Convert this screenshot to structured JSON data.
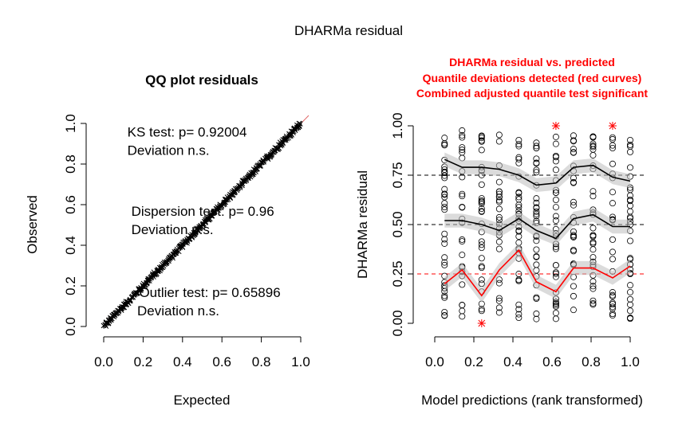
{
  "figure": {
    "title": "DHARMa residual"
  },
  "chart_data": [
    {
      "type": "scatter",
      "title": "QQ plot residuals",
      "xlabel": "Expected",
      "ylabel": "Observed",
      "xlim": [
        0,
        1
      ],
      "ylim": [
        0,
        1
      ],
      "x_ticks": [
        "0.0",
        "0.2",
        "0.4",
        "0.6",
        "0.8",
        "1.0"
      ],
      "y_ticks": [
        "0.0",
        "0.2",
        "0.4",
        "0.6",
        "0.8",
        "1.0"
      ],
      "reference_line": {
        "from": [
          0,
          0
        ],
        "to": [
          1,
          1
        ],
        "color": "#e06666"
      },
      "annotations": [
        {
          "text": "KS test: p= 0.92004",
          "x": 0.12,
          "y": 0.935
        },
        {
          "text": "Deviation  n.s.",
          "x": 0.12,
          "y": 0.845
        },
        {
          "text": "Dispersion test: p= 0.96",
          "x": 0.14,
          "y": 0.545
        },
        {
          "text": "Deviation  n.s.",
          "x": 0.14,
          "y": 0.455
        },
        {
          "text": "Outlier test: p= 0.65896",
          "x": 0.18,
          "y": 0.145
        },
        {
          "text": "Deviation  n.s.",
          "x": 0.17,
          "y": 0.055
        }
      ]
    },
    {
      "type": "scatter",
      "title_lines": [
        "DHARMa residual vs. predicted",
        "Quantile deviations detected (red curves)",
        "Combined adjusted quantile test significant"
      ],
      "title_color": "#ff0000",
      "xlabel": "Model predictions (rank transformed)",
      "ylabel": "DHARMa residual",
      "xlim": [
        0,
        1
      ],
      "ylim": [
        0,
        1
      ],
      "x_ticks": [
        "0.0",
        "0.2",
        "0.4",
        "0.6",
        "0.8",
        "1.0"
      ],
      "y_ticks": [
        "0.00",
        "0.25",
        "0.50",
        "0.75",
        "1.00"
      ],
      "reference_lines": [
        {
          "y": 0.25,
          "color": "#ff0000"
        },
        {
          "y": 0.5,
          "color": "#000000"
        },
        {
          "y": 0.75,
          "color": "#000000"
        }
      ],
      "prediction_groups": [
        0.05,
        0.14,
        0.24,
        0.33,
        0.43,
        0.52,
        0.62,
        0.71,
        0.81,
        0.91,
        1.0
      ],
      "series": [
        {
          "quantile": 0.75,
          "color": "#000000",
          "y": [
            0.83,
            0.79,
            0.79,
            0.78,
            0.75,
            0.7,
            0.71,
            0.79,
            0.8,
            0.74,
            0.72
          ]
        },
        {
          "quantile": 0.5,
          "color": "#000000",
          "y": [
            0.52,
            0.52,
            0.5,
            0.47,
            0.53,
            0.47,
            0.43,
            0.53,
            0.55,
            0.49,
            0.49
          ]
        },
        {
          "quantile": 0.25,
          "color": "#ff0000",
          "y": [
            0.2,
            0.27,
            0.14,
            0.27,
            0.37,
            0.21,
            0.16,
            0.28,
            0.28,
            0.23,
            0.29
          ]
        }
      ],
      "outliers": [
        {
          "x": 0.24,
          "y": 0.0
        },
        {
          "x": 0.62,
          "y": 1.0
        },
        {
          "x": 0.91,
          "y": 1.0
        }
      ]
    }
  ]
}
